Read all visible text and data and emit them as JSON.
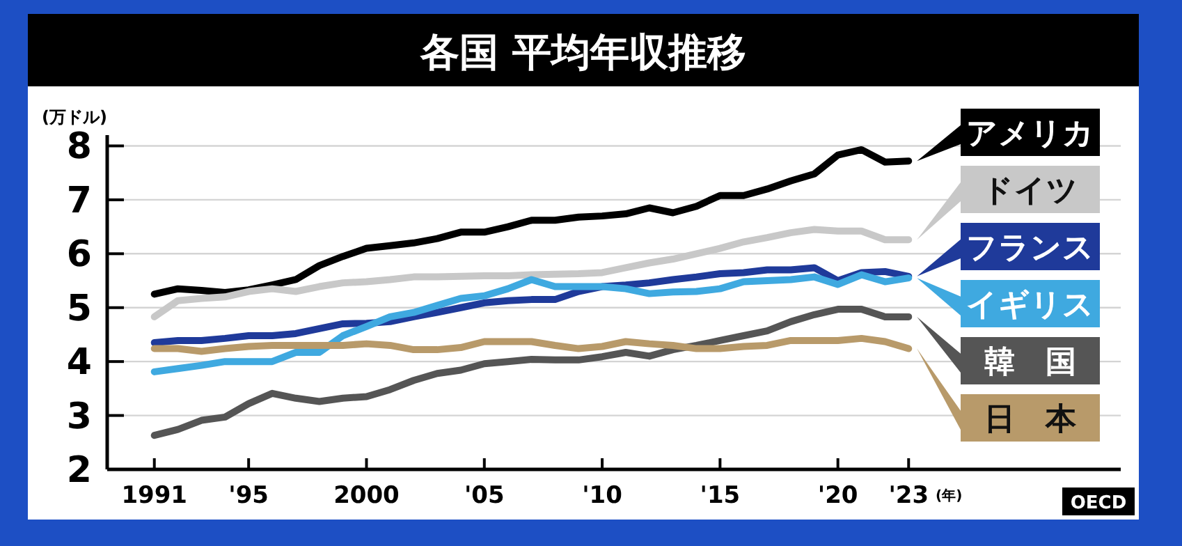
{
  "chart_data": {
    "type": "line",
    "title": "各国 平均年収推移",
    "ylabel": "(万ドル)",
    "xlabel": "(年)",
    "annotations": [
      "OECD"
    ],
    "x": [
      1991,
      1992,
      1993,
      1994,
      1995,
      1996,
      1997,
      1998,
      1999,
      2000,
      2001,
      2002,
      2003,
      2004,
      2005,
      2006,
      2007,
      2008,
      2009,
      2010,
      2011,
      2012,
      2013,
      2014,
      2015,
      2016,
      2017,
      2018,
      2019,
      2020,
      2021,
      2022,
      2023
    ],
    "xlim": [
      1989,
      2032
    ],
    "ylim": [
      2,
      8.2
    ],
    "xticks": [
      1991,
      {
        "value": 1995,
        "label": "'95"
      },
      2000,
      {
        "value": 2005,
        "label": "'05"
      },
      {
        "value": 2010,
        "label": "'10"
      },
      {
        "value": 2015,
        "label": "'15"
      },
      {
        "value": 2020,
        "label": "'20"
      },
      {
        "value": 2023,
        "label": "'23"
      }
    ],
    "yticks": [
      2,
      3,
      4,
      5,
      6,
      7,
      8
    ],
    "grid": "y",
    "legend": "right",
    "marker": "none",
    "line_style": "solid",
    "series": [
      {
        "name": "アメリカ",
        "color": "#000000",
        "values": [
          5.25,
          5.35,
          5.32,
          5.28,
          5.33,
          5.42,
          5.52,
          5.78,
          5.95,
          6.1,
          6.15,
          6.2,
          6.28,
          6.4,
          6.4,
          6.5,
          6.62,
          6.62,
          6.68,
          6.7,
          6.74,
          6.85,
          6.76,
          6.88,
          7.08,
          7.08,
          7.2,
          7.35,
          7.48,
          7.83,
          7.93,
          7.7,
          7.72
        ]
      },
      {
        "name": "ドイツ",
        "color": "#c8c8c8",
        "values": [
          4.83,
          5.13,
          5.17,
          5.2,
          5.3,
          5.35,
          5.3,
          5.39,
          5.46,
          5.48,
          5.52,
          5.57,
          5.57,
          5.58,
          5.59,
          5.59,
          5.61,
          5.62,
          5.63,
          5.65,
          5.74,
          5.83,
          5.9,
          6.0,
          6.1,
          6.22,
          6.3,
          6.39,
          6.45,
          6.42,
          6.42,
          6.26,
          6.26
        ]
      },
      {
        "name": "フランス",
        "color": "#1f3a9a",
        "values": [
          4.35,
          4.39,
          4.39,
          4.43,
          4.48,
          4.48,
          4.52,
          4.61,
          4.7,
          4.71,
          4.74,
          4.83,
          4.91,
          5.0,
          5.09,
          5.13,
          5.15,
          5.15,
          5.3,
          5.39,
          5.42,
          5.46,
          5.52,
          5.57,
          5.63,
          5.65,
          5.7,
          5.7,
          5.74,
          5.5,
          5.65,
          5.67,
          5.58
        ]
      },
      {
        "name": "イギリス",
        "color": "#3fa9e0",
        "values": [
          3.81,
          3.87,
          3.93,
          4.0,
          4.0,
          4.0,
          4.17,
          4.17,
          4.48,
          4.65,
          4.83,
          4.91,
          5.04,
          5.17,
          5.22,
          5.35,
          5.52,
          5.39,
          5.39,
          5.39,
          5.35,
          5.26,
          5.29,
          5.3,
          5.35,
          5.48,
          5.5,
          5.52,
          5.57,
          5.43,
          5.61,
          5.48,
          5.55
        ]
      },
      {
        "name": "韓　国",
        "color": "#555555",
        "values": [
          2.63,
          2.74,
          2.91,
          2.97,
          3.22,
          3.41,
          3.32,
          3.26,
          3.32,
          3.35,
          3.48,
          3.65,
          3.78,
          3.84,
          3.96,
          4.0,
          4.04,
          4.03,
          4.03,
          4.09,
          4.17,
          4.1,
          4.22,
          4.3,
          4.39,
          4.48,
          4.57,
          4.74,
          4.87,
          4.97,
          4.97,
          4.83,
          4.83
        ]
      },
      {
        "name": "日　本",
        "color": "#b89a6a",
        "values": [
          4.24,
          4.24,
          4.19,
          4.24,
          4.28,
          4.3,
          4.3,
          4.3,
          4.3,
          4.33,
          4.3,
          4.22,
          4.22,
          4.26,
          4.37,
          4.37,
          4.37,
          4.3,
          4.24,
          4.28,
          4.37,
          4.33,
          4.3,
          4.24,
          4.24,
          4.28,
          4.3,
          4.39,
          4.39,
          4.39,
          4.43,
          4.37,
          4.24
        ]
      }
    ]
  }
}
